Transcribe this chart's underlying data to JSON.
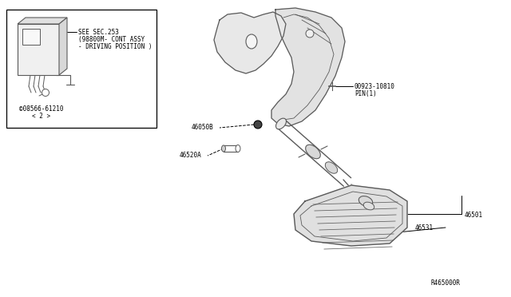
{
  "bg_color": "#ffffff",
  "line_color": "#000000",
  "diagram_color": "#5a5a5a",
  "fig_width": 6.4,
  "fig_height": 3.72,
  "dpi": 100,
  "ref_code": "R465000R",
  "box_label_line1": "SEE SEC.253",
  "box_label_line2": "(98800M- CONT ASSY",
  "box_label_line3": "- DRIVING POSITION )",
  "part_label_box": "©08566-61210",
  "part_label_box2": "< 2 >",
  "part_46050B": "46050B",
  "part_46520A": "46520A",
  "part_00923": "00923-10810",
  "part_pin": "PIN(1)",
  "part_46501": "46501",
  "part_46531": "46531",
  "font_size": 5.5,
  "font_family": "monospace"
}
